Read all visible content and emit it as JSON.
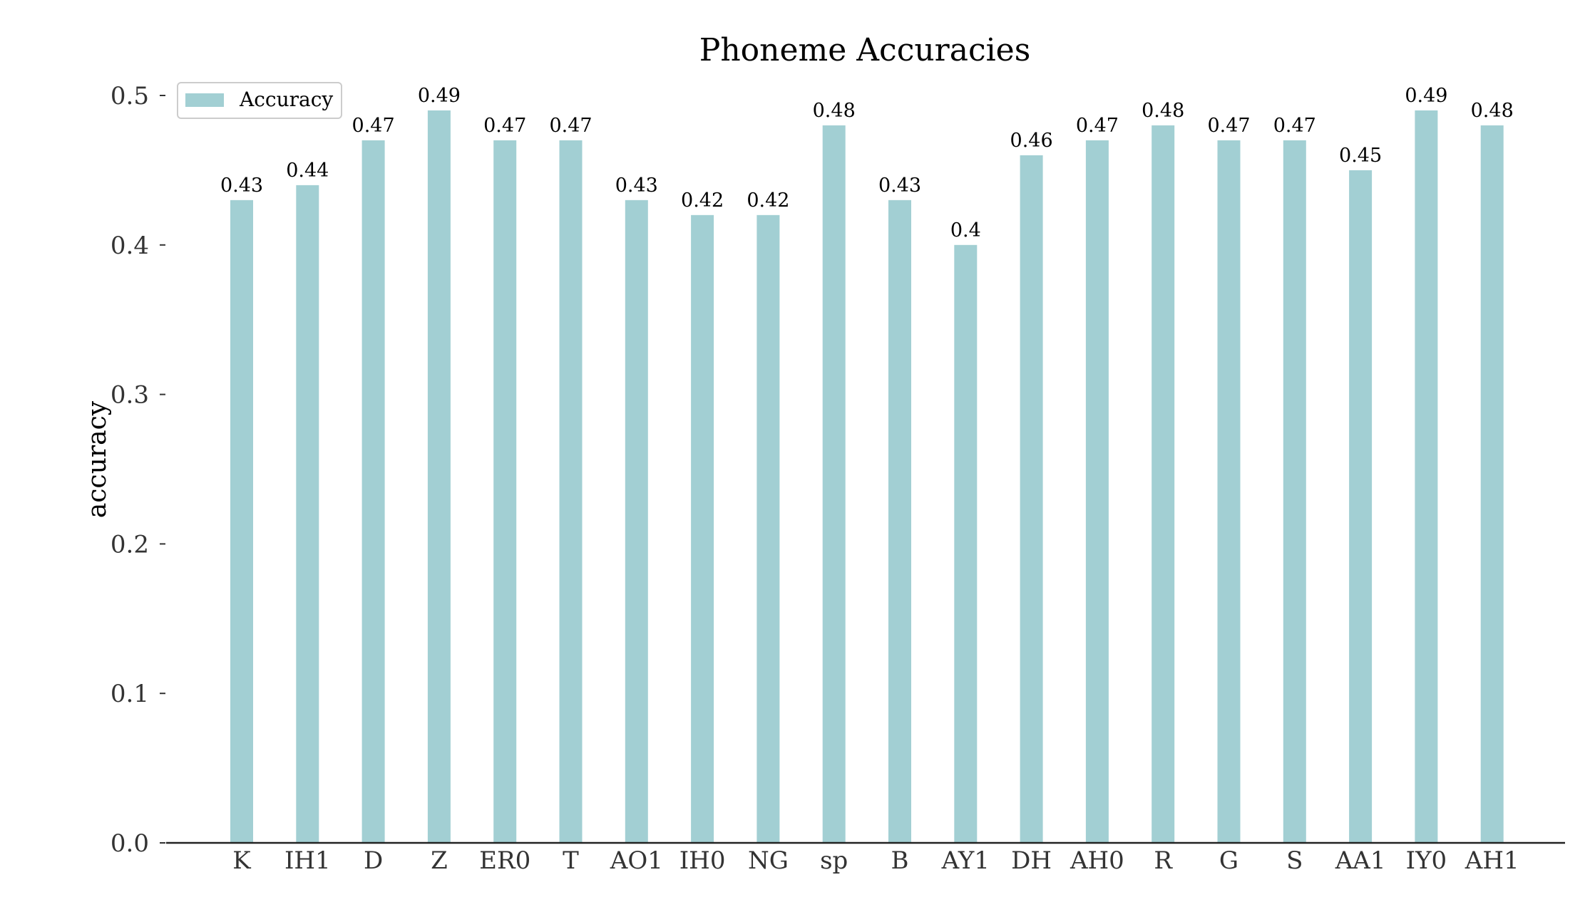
{
  "chart_data": {
    "type": "bar",
    "title": "Phoneme Accuracies",
    "xlabel": "",
    "ylabel": "accuracy",
    "ylim": [
      0,
      0.5
    ],
    "yticks": [
      "0.0",
      "0.1",
      "0.2",
      "0.3",
      "0.4",
      "0.5"
    ],
    "grid": false,
    "legend_position": "top-left",
    "bar_color": "#a2cfd3",
    "categories": [
      "K",
      "IH1",
      "D",
      "Z",
      "ER0",
      "T",
      "AO1",
      "IH0",
      "NG",
      "sp",
      "B",
      "AY1",
      "DH",
      "AH0",
      "R",
      "G",
      "S",
      "AA1",
      "IY0",
      "AH1"
    ],
    "series": [
      {
        "name": "Accuracy",
        "values": [
          0.43,
          0.44,
          0.47,
          0.49,
          0.47,
          0.47,
          0.43,
          0.42,
          0.42,
          0.48,
          0.43,
          0.4,
          0.46,
          0.47,
          0.48,
          0.47,
          0.47,
          0.45,
          0.49,
          0.48
        ],
        "labels": [
          "0.43",
          "0.44",
          "0.47",
          "0.49",
          "0.47",
          "0.47",
          "0.43",
          "0.42",
          "0.42",
          "0.48",
          "0.43",
          "0.4",
          "0.46",
          "0.47",
          "0.48",
          "0.47",
          "0.47",
          "0.45",
          "0.49",
          "0.48"
        ]
      }
    ]
  }
}
